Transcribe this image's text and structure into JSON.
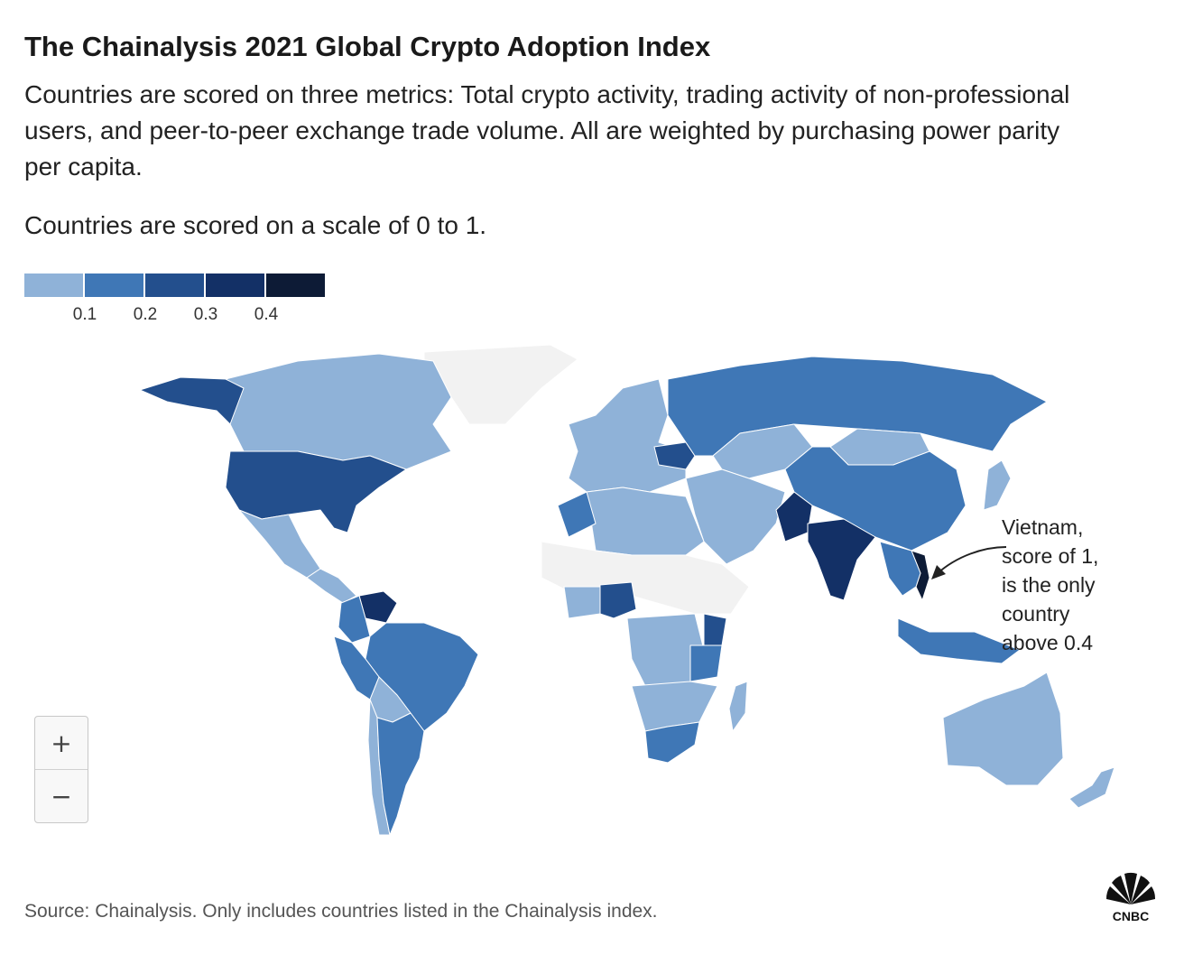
{
  "title": "The Chainalysis 2021 Global Crypto Adoption Index",
  "subtitle": "Countries are scored on three metrics: Total crypto activity, trading activity of non-professional users, and peer-to-peer exchange trade volume. All are weighted by purchasing power parity per capita.",
  "scale_note": "Countries are scored on a scale of 0 to 1.",
  "legend": {
    "colors": [
      "#8fb2d8",
      "#3f77b6",
      "#234f8d",
      "#133066",
      "#0d1b36"
    ],
    "labels": [
      "0.1",
      "0.2",
      "0.3",
      "0.4"
    ]
  },
  "map": {
    "no_data_color": "#f2f2f2",
    "regions": [
      {
        "name": "Canada",
        "level": 1
      },
      {
        "name": "Greenland",
        "level": 0
      },
      {
        "name": "Alaska",
        "level": 3
      },
      {
        "name": "United States",
        "level": 3
      },
      {
        "name": "Mexico",
        "level": 1
      },
      {
        "name": "Central America",
        "level": 1
      },
      {
        "name": "Venezuela",
        "level": 4
      },
      {
        "name": "Colombia",
        "level": 2
      },
      {
        "name": "Brazil",
        "level": 2
      },
      {
        "name": "Peru",
        "level": 2
      },
      {
        "name": "Bolivia",
        "level": 1
      },
      {
        "name": "Argentina",
        "level": 2
      },
      {
        "name": "Chile",
        "level": 1
      },
      {
        "name": "Europe",
        "level": 1
      },
      {
        "name": "Ukraine",
        "level": 3
      },
      {
        "name": "Russia",
        "level": 2
      },
      {
        "name": "Kazakhstan",
        "level": 1
      },
      {
        "name": "Mongolia",
        "level": 1
      },
      {
        "name": "China",
        "level": 2
      },
      {
        "name": "Middle East",
        "level": 1
      },
      {
        "name": "Pakistan",
        "level": 4
      },
      {
        "name": "India",
        "level": 4
      },
      {
        "name": "Vietnam",
        "level": 5
      },
      {
        "name": "Southeast Asia",
        "level": 2
      },
      {
        "name": "Indonesia",
        "level": 2
      },
      {
        "name": "Japan",
        "level": 1
      },
      {
        "name": "North Africa",
        "level": 1
      },
      {
        "name": "Morocco",
        "level": 2
      },
      {
        "name": "Sahel",
        "level": 0
      },
      {
        "name": "West Africa",
        "level": 1
      },
      {
        "name": "Nigeria",
        "level": 3
      },
      {
        "name": "Central Africa",
        "level": 1
      },
      {
        "name": "Kenya",
        "level": 3
      },
      {
        "name": "Tanzania",
        "level": 2
      },
      {
        "name": "Southern Africa",
        "level": 1
      },
      {
        "name": "South Africa",
        "level": 2
      },
      {
        "name": "Madagascar",
        "level": 1
      },
      {
        "name": "Australia",
        "level": 1
      },
      {
        "name": "New Zealand",
        "level": 1
      }
    ]
  },
  "annotation": {
    "lines": [
      "Vietnam,",
      "score of 1,",
      "is the only",
      "country",
      "above 0.4"
    ]
  },
  "zoom": {
    "in_label": "+",
    "out_label": "−"
  },
  "source": "Source: Chainalysis. Only includes countries listed in the Chainalysis index.",
  "logo_text": "CNBC"
}
